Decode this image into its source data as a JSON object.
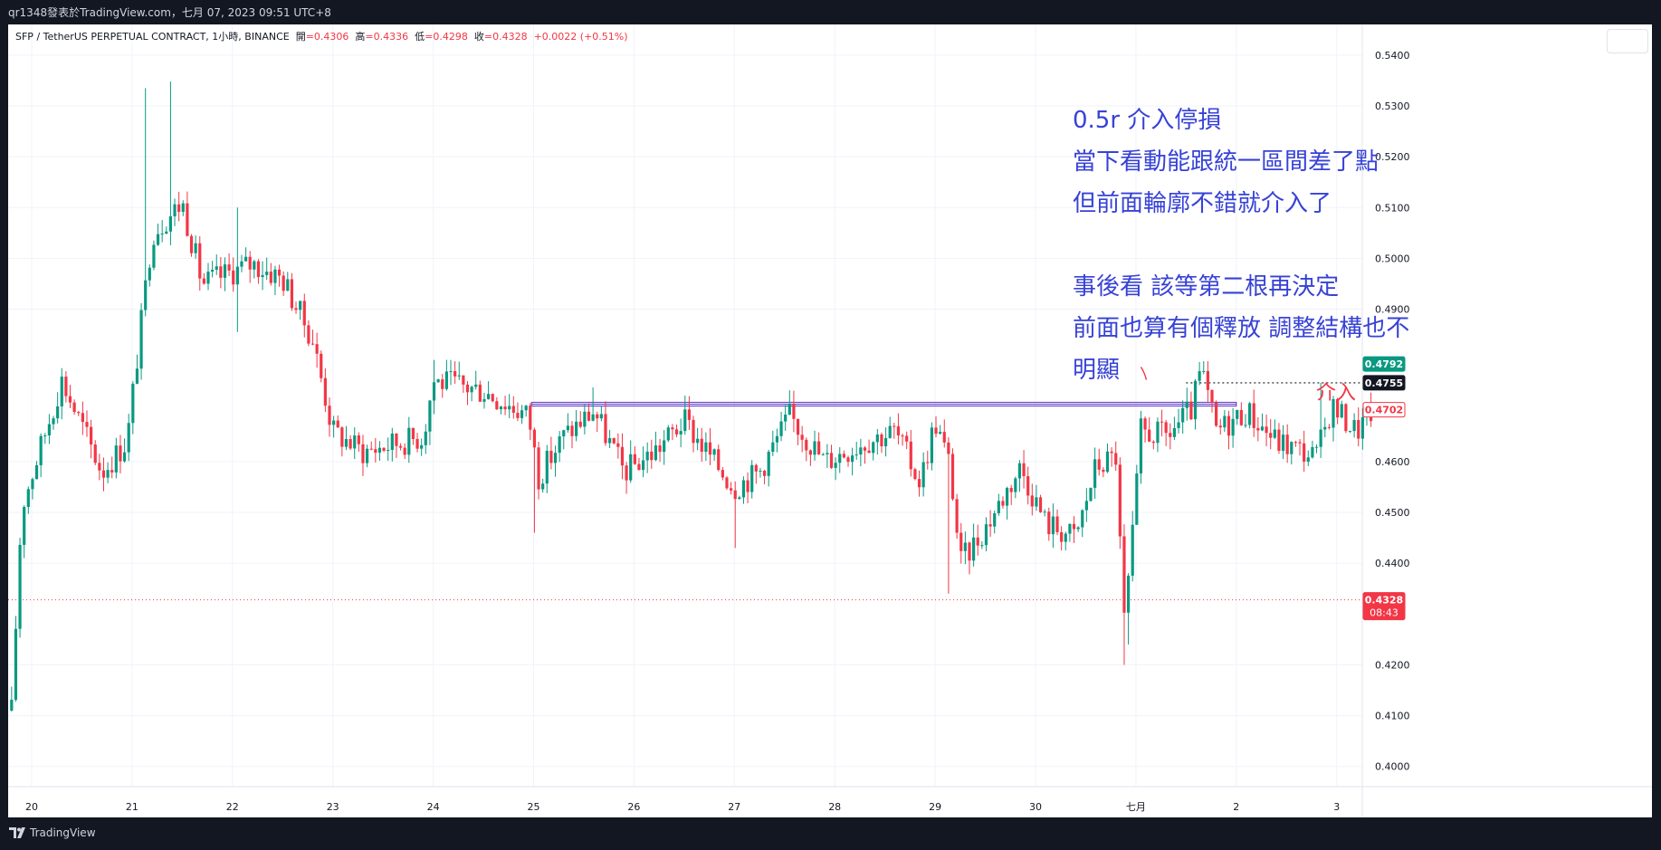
{
  "window": {
    "title": "qr1348發表於TradingView.com，七月 07, 2023 09:51 UTC+8"
  },
  "legend": {
    "symbol": "SFP / TetherUS PERPETUAL CONTRACT, 1小時, BINANCE",
    "open_label": "開",
    "open": "=0.4306",
    "high_label": "高",
    "high": "=0.4336",
    "low_label": "低",
    "low": "=0.4298",
    "close_label": "收",
    "close": "=0.4328",
    "change": "+0.0022 (+0.51%)"
  },
  "annotation": {
    "lines": [
      "0.5r 介入停損",
      "當下看動能跟統一區間差了點",
      "但前面輪廓不錯就介入了",
      "",
      "事後看 該等第二根再決定",
      "前面也算有個釋放 調整結構也不",
      "明顯"
    ],
    "entry_label": "介入"
  },
  "price_tags": {
    "green": "0.4792",
    "dark": "0.4755",
    "outline": "0.4702",
    "current": "0.4328",
    "countdown": "08:43"
  },
  "footer": {
    "brand": "TradingView"
  },
  "colors": {
    "up": "#089981",
    "down": "#f23645",
    "annotation": "#3742d6",
    "zone": "#7b3fc4"
  },
  "chart_data": {
    "type": "candlestick",
    "timeframe": "1h",
    "x_tick_labels": [
      "20",
      "21",
      "22",
      "23",
      "24",
      "25",
      "26",
      "27",
      "28",
      "29",
      "30",
      "七月",
      "2",
      "3"
    ],
    "y_tick_labels": [
      "0.5400",
      "0.5300",
      "0.5200",
      "0.5100",
      "0.5000",
      "0.4900",
      "0.4600",
      "0.4500",
      "0.4400",
      "0.4200",
      "0.4100",
      "0.4000"
    ],
    "ylim": [
      0.3955,
      0.5455
    ],
    "grid": true,
    "horizontal_levels": [
      {
        "name": "range-top-zone",
        "price": 0.4713
      },
      {
        "name": "entry-level",
        "price": 0.4755
      },
      {
        "name": "current-price",
        "price": 0.4328
      }
    ],
    "path_keypoints": [
      {
        "day": 19.8,
        "price": 0.411
      },
      {
        "day": 19.9,
        "price": 0.451
      },
      {
        "day": 20.3,
        "price": 0.476
      },
      {
        "day": 20.7,
        "price": 0.458
      },
      {
        "day": 20.95,
        "price": 0.464
      },
      {
        "day": 21.2,
        "price": 0.505
      },
      {
        "day": 21.5,
        "price": 0.511
      },
      {
        "day": 21.7,
        "price": 0.495
      },
      {
        "day": 22.2,
        "price": 0.499
      },
      {
        "day": 22.5,
        "price": 0.496
      },
      {
        "day": 22.8,
        "price": 0.484
      },
      {
        "day": 23.0,
        "price": 0.466
      },
      {
        "day": 23.3,
        "price": 0.462
      },
      {
        "day": 23.9,
        "price": 0.465
      },
      {
        "day": 24.0,
        "price": 0.476
      },
      {
        "day": 24.5,
        "price": 0.474
      },
      {
        "day": 24.95,
        "price": 0.469
      },
      {
        "day": 25.05,
        "price": 0.457
      },
      {
        "day": 25.3,
        "price": 0.465
      },
      {
        "day": 25.6,
        "price": 0.47
      },
      {
        "day": 25.9,
        "price": 0.458
      },
      {
        "day": 26.2,
        "price": 0.462
      },
      {
        "day": 26.5,
        "price": 0.468
      },
      {
        "day": 26.8,
        "price": 0.46
      },
      {
        "day": 27.0,
        "price": 0.455
      },
      {
        "day": 27.25,
        "price": 0.458
      },
      {
        "day": 27.55,
        "price": 0.469
      },
      {
        "day": 27.9,
        "price": 0.46
      },
      {
        "day": 28.3,
        "price": 0.464
      },
      {
        "day": 28.6,
        "price": 0.466
      },
      {
        "day": 28.85,
        "price": 0.456
      },
      {
        "day": 29.0,
        "price": 0.468
      },
      {
        "day": 29.15,
        "price": 0.459
      },
      {
        "day": 29.25,
        "price": 0.44
      },
      {
        "day": 29.5,
        "price": 0.447
      },
      {
        "day": 29.85,
        "price": 0.459
      },
      {
        "day": 30.1,
        "price": 0.448
      },
      {
        "day": 30.4,
        "price": 0.445
      },
      {
        "day": 30.6,
        "price": 0.459
      },
      {
        "day": 30.8,
        "price": 0.461
      },
      {
        "day": 30.88,
        "price": 0.428
      },
      {
        "day": 30.95,
        "price": 0.441
      },
      {
        "day": 31.05,
        "price": 0.466
      },
      {
        "day": 31.3,
        "price": 0.465
      },
      {
        "day": 31.55,
        "price": 0.47
      },
      {
        "day": 31.65,
        "price": 0.478
      },
      {
        "day": 31.8,
        "price": 0.466
      },
      {
        "day": 32.1,
        "price": 0.47
      },
      {
        "day": 32.4,
        "price": 0.464
      },
      {
        "day": 32.8,
        "price": 0.461
      },
      {
        "day": 32.95,
        "price": 0.471
      },
      {
        "day": 33.2,
        "price": 0.466
      },
      {
        "day": 33.35,
        "price": 0.47
      }
    ]
  }
}
